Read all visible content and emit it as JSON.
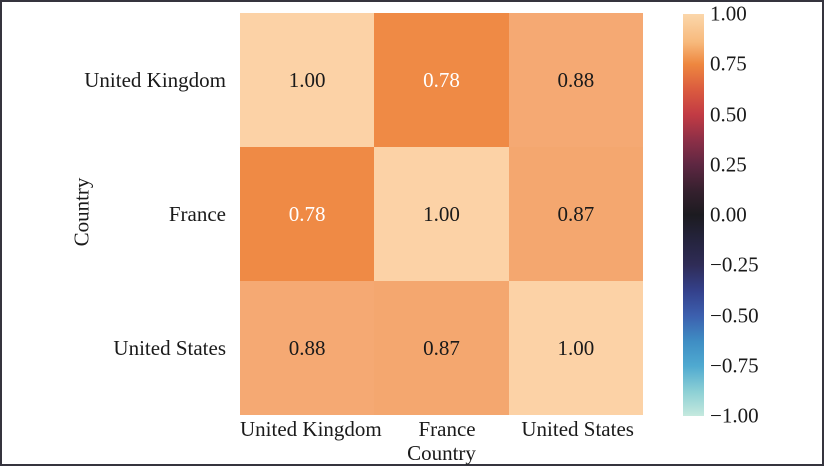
{
  "figure": {
    "background_color": "#ffffff",
    "frame_color": "#35343e",
    "annotation_dark_color": "#1a1a1a",
    "annotation_light_color": "#ffffff"
  },
  "chart_data": {
    "type": "heatmap",
    "title": "",
    "xlabel": "Country",
    "ylabel": "Country",
    "x_categories": [
      "United Kingdom",
      "France",
      "United States"
    ],
    "y_categories": [
      "United Kingdom",
      "France",
      "United States"
    ],
    "values": [
      [
        1.0,
        0.78,
        0.88
      ],
      [
        0.78,
        1.0,
        0.87
      ],
      [
        0.88,
        0.87,
        1.0
      ]
    ],
    "cell_labels": [
      [
        "1.00",
        "0.78",
        "0.88"
      ],
      [
        "0.78",
        "1.00",
        "0.87"
      ],
      [
        "0.88",
        "0.87",
        "1.00"
      ]
    ],
    "cell_colors": [
      [
        "#fcd2a6",
        "#ef8a45",
        "#f5a973"
      ],
      [
        "#ef8a45",
        "#fcd2a6",
        "#f4a76f"
      ],
      [
        "#f5a973",
        "#f4a76f",
        "#fcd2a6"
      ]
    ],
    "cell_text_colors": [
      [
        "#1a1a1a",
        "#ffffff",
        "#1a1a1a"
      ],
      [
        "#ffffff",
        "#1a1a1a",
        "#1a1a1a"
      ],
      [
        "#1a1a1a",
        "#1a1a1a",
        "#1a1a1a"
      ]
    ],
    "grid": false,
    "annotations": true,
    "colormap": "icefire",
    "colorbar": {
      "position": "right",
      "min": -1.0,
      "max": 1.0,
      "tick_step": 0.25,
      "tick_labels": [
        "1.00",
        "0.75",
        "0.50",
        "0.25",
        "0.00",
        "−0.25",
        "−0.50",
        "−0.75",
        "−1.00"
      ],
      "gradient_stops": [
        {
          "pos": 0.0,
          "color": "#fbd7ab"
        },
        {
          "pos": 0.07,
          "color": "#f7b97c"
        },
        {
          "pos": 0.125,
          "color": "#ee873f"
        },
        {
          "pos": 0.19,
          "color": "#da5a3f"
        },
        {
          "pos": 0.25,
          "color": "#c23b44"
        },
        {
          "pos": 0.315,
          "color": "#8c2f47"
        },
        {
          "pos": 0.375,
          "color": "#5e2742"
        },
        {
          "pos": 0.44,
          "color": "#35202e"
        },
        {
          "pos": 0.5,
          "color": "#1c1b20"
        },
        {
          "pos": 0.56,
          "color": "#24233c"
        },
        {
          "pos": 0.625,
          "color": "#2f2c57"
        },
        {
          "pos": 0.69,
          "color": "#34418c"
        },
        {
          "pos": 0.75,
          "color": "#3c5fae"
        },
        {
          "pos": 0.815,
          "color": "#3f8ec4"
        },
        {
          "pos": 0.875,
          "color": "#4fa9d0"
        },
        {
          "pos": 0.94,
          "color": "#8dd0d5"
        },
        {
          "pos": 1.0,
          "color": "#c5e9de"
        }
      ]
    }
  }
}
